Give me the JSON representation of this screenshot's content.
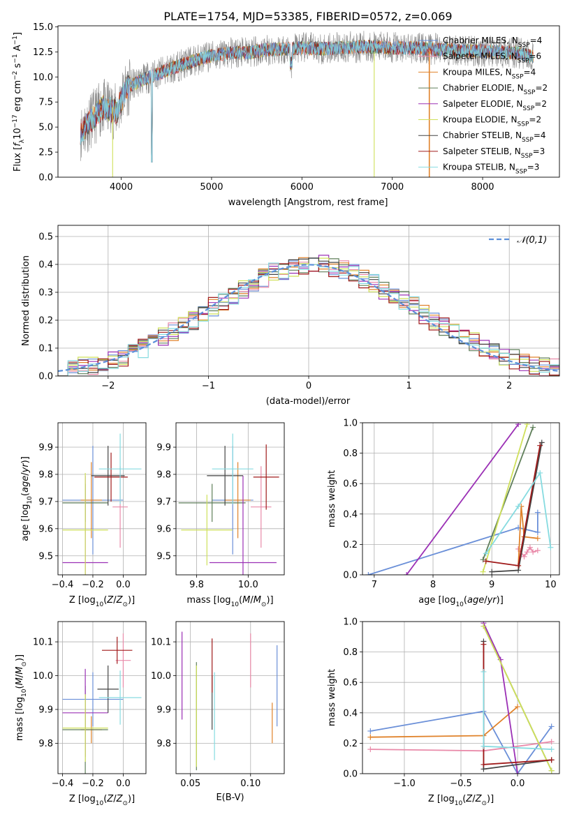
{
  "figure_title": "PLATE=1754, MJD=53385, FIBERID=0572, z=0.069",
  "colors": {
    "chabrier_miles": "#6a8fd8",
    "salpeter_miles": "#e98aa9",
    "kroupa_miles": "#e0822a",
    "chabrier_elodie": "#5f7f5a",
    "salpeter_elodie": "#9b30b5",
    "kroupa_elodie": "#cfe05a",
    "chabrier_stelib": "#444444",
    "salpeter_stelib": "#a01a1a",
    "kroupa_stelib": "#86dbe0",
    "normal_curve": "#5b8fd9",
    "data_spectrum": "#888888"
  },
  "chart_data": [
    {
      "id": "spectrum",
      "type": "line",
      "title": "PLATE=1754, MJD=53385, FIBERID=0572, z=0.069",
      "xlabel": "wavelength [Angstrom, rest frame]",
      "ylabel": "Flux [f_λ 10^-17 erg cm^-2 s^-1 A^-1]",
      "xlim": [
        3300,
        8850
      ],
      "ylim": [
        0,
        15.1
      ],
      "xticks": [
        4000,
        5000,
        6000,
        7000,
        8000
      ],
      "yticks": [
        "0.0",
        "2.5",
        "5.0",
        "7.5",
        "10.0",
        "12.5",
        "15.0"
      ],
      "legend_position": "right",
      "legend": [
        {
          "label": "Chabrier MILES, N",
          "sub": "SSP",
          "suffix": "=4"
        },
        {
          "label": "Salpeter MILES, N",
          "sub": "SSP",
          "suffix": "=6"
        },
        {
          "label": "Kroupa MILES, N",
          "sub": "SSP",
          "suffix": "=4"
        },
        {
          "label": "Chabrier ELODIE, N",
          "sub": "SSP",
          "suffix": "=2"
        },
        {
          "label": "Salpeter ELODIE, N",
          "sub": "SSP",
          "suffix": "=2"
        },
        {
          "label": "Kroupa ELODIE, N",
          "sub": "SSP",
          "suffix": "=2"
        },
        {
          "label": "Chabrier STELIB, N",
          "sub": "SSP",
          "suffix": "=4"
        },
        {
          "label": "Salpeter STELIB, N",
          "sub": "SSP",
          "suffix": "=3"
        },
        {
          "label": "Kroupa STELIB, N",
          "sub": "SSP",
          "suffix": "=3"
        }
      ],
      "continuum": {
        "x": [
          3550,
          3650,
          3800,
          3950,
          4050,
          4200,
          4400,
          4600,
          4800,
          5000,
          5200,
          5400,
          5600,
          5800,
          6000,
          6200,
          6400,
          6600,
          6800,
          7000,
          7200,
          7400,
          7600,
          7800,
          8000,
          8200,
          8400,
          8550
        ],
        "y": [
          4.5,
          5.5,
          7.0,
          6.5,
          8.8,
          9.6,
          10.3,
          11.0,
          11.6,
          12.1,
          12.4,
          12.4,
          12.7,
          12.8,
          12.9,
          12.8,
          12.9,
          13.0,
          13.0,
          12.9,
          12.9,
          12.8,
          12.7,
          12.6,
          12.6,
          12.5,
          12.4,
          12.0
        ]
      }
    },
    {
      "id": "residual-hist",
      "type": "histogram",
      "xlabel": "(data-model)/error",
      "ylabel": "Normed distribution",
      "xlim": [
        -2.5,
        2.5
      ],
      "ylim": [
        0,
        0.54
      ],
      "xticks": [
        "-2",
        "-1",
        "0",
        "1",
        "2"
      ],
      "yticks": [
        "0.0",
        "0.1",
        "0.2",
        "0.3",
        "0.4",
        "0.5"
      ],
      "legend": "𝒩(0,1)",
      "legend_position": "top-right",
      "bin_width": 0.1,
      "x_start": -2.5,
      "envelope": [
        0.03,
        0.03,
        0.035,
        0.04,
        0.05,
        0.06,
        0.07,
        0.085,
        0.1,
        0.12,
        0.14,
        0.16,
        0.18,
        0.2,
        0.22,
        0.25,
        0.27,
        0.29,
        0.31,
        0.33,
        0.35,
        0.37,
        0.38,
        0.39,
        0.4,
        0.39,
        0.4,
        0.39,
        0.38,
        0.37,
        0.35,
        0.33,
        0.31,
        0.29,
        0.27,
        0.25,
        0.22,
        0.2,
        0.18,
        0.16,
        0.14,
        0.12,
        0.1,
        0.085,
        0.07,
        0.06,
        0.05,
        0.04,
        0.03,
        0.03
      ]
    },
    {
      "id": "age-vs-z",
      "type": "errorbar",
      "xlabel": "Z [log10(Z/Z⊙)]",
      "ylabel": "age [log10(age/yr)]",
      "xlim": [
        -0.43,
        0.15
      ],
      "ylim": [
        9.43,
        9.99
      ],
      "xticks": [
        "-0.4",
        "-0.2",
        "0.0"
      ],
      "yticks": [
        "9.5",
        "9.6",
        "9.7",
        "9.8",
        "9.9"
      ],
      "points": [
        {
          "series": "chabrier_miles",
          "x": -0.2,
          "y": 9.705,
          "xerr": 0.2,
          "yerr": 0.2
        },
        {
          "series": "salpeter_miles",
          "x": -0.02,
          "y": 9.68,
          "xerr": 0.05,
          "yerr": 0.15
        },
        {
          "series": "kroupa_miles",
          "x": -0.21,
          "y": 9.705,
          "xerr": 0.07,
          "yerr": 0.14
        },
        {
          "series": "chabrier_elodie",
          "x": -0.25,
          "y": 9.695,
          "xerr": 0.15,
          "yerr": 0.07
        },
        {
          "series": "salpeter_elodie",
          "x": -0.25,
          "y": 9.475,
          "xerr": 0.15,
          "yerr": 0.32
        },
        {
          "series": "kroupa_elodie",
          "x": -0.25,
          "y": 9.595,
          "xerr": 0.15,
          "yerr": 0.21
        },
        {
          "series": "chabrier_stelib",
          "x": -0.1,
          "y": 9.795,
          "xerr": 0.11,
          "yerr": 0.11
        },
        {
          "series": "salpeter_stelib",
          "x": -0.08,
          "y": 9.79,
          "xerr": 0.11,
          "yerr": 0.09
        },
        {
          "series": "kroupa_stelib",
          "x": -0.02,
          "y": 9.82,
          "xerr": 0.14,
          "yerr": 0.13
        }
      ]
    },
    {
      "id": "age-vs-mass",
      "type": "errorbar",
      "xlabel": "mass [log10(M/M⊙)]",
      "ylabel": "",
      "xlim": [
        9.72,
        10.14
      ],
      "ylim": [
        9.43,
        9.99
      ],
      "xticks": [
        "9.8",
        "10.0"
      ],
      "yticks": [
        "9.5",
        "9.6",
        "9.7",
        "9.8",
        "9.9"
      ],
      "points": [
        {
          "series": "chabrier_miles",
          "x": 9.94,
          "y": 9.705,
          "xerr": 0.08,
          "yerr": 0.2
        },
        {
          "series": "salpeter_miles",
          "x": 10.05,
          "y": 9.68,
          "xerr": 0.04,
          "yerr": 0.15
        },
        {
          "series": "kroupa_miles",
          "x": 9.96,
          "y": 9.705,
          "xerr": 0.05,
          "yerr": 0.14
        },
        {
          "series": "chabrier_elodie",
          "x": 9.86,
          "y": 9.695,
          "xerr": 0.13,
          "yerr": 0.07
        },
        {
          "series": "salpeter_elodie",
          "x": 9.98,
          "y": 9.475,
          "xerr": 0.13,
          "yerr": 0.32
        },
        {
          "series": "kroupa_elodie",
          "x": 9.84,
          "y": 9.595,
          "xerr": 0.1,
          "yerr": 0.13
        },
        {
          "series": "chabrier_stelib",
          "x": 9.91,
          "y": 9.795,
          "xerr": 0.07,
          "yerr": 0.11
        },
        {
          "series": "salpeter_stelib",
          "x": 10.07,
          "y": 9.79,
          "xerr": 0.05,
          "yerr": 0.12
        },
        {
          "series": "kroupa_stelib",
          "x": 9.94,
          "y": 9.82,
          "xerr": 0.08,
          "yerr": 0.13
        }
      ]
    },
    {
      "id": "mass-weight-vs-age",
      "type": "line",
      "xlabel": "age [log10(age/yr)]",
      "ylabel": "mass weight",
      "xlim": [
        6.8,
        10.15
      ],
      "ylim": [
        0,
        1.0
      ],
      "xticks": [
        "7",
        "8",
        "9",
        "10"
      ],
      "yticks": [
        "0.0",
        "0.2",
        "0.4",
        "0.6",
        "0.8",
        "1.0"
      ],
      "series": [
        {
          "series": "chabrier_miles",
          "x": [
            6.9,
            9.45,
            9.78,
            9.78
          ],
          "y": [
            0.0,
            0.31,
            0.28,
            0.41
          ]
        },
        {
          "series": "salpeter_miles",
          "x": [
            9.45,
            9.55,
            9.6,
            9.65,
            9.7,
            9.78
          ],
          "y": [
            0.17,
            0.12,
            0.15,
            0.18,
            0.15,
            0.16
          ]
        },
        {
          "series": "kroupa_miles",
          "x": [
            9.45,
            9.5,
            9.55,
            9.78
          ],
          "y": [
            0.06,
            0.45,
            0.25,
            0.24
          ]
        },
        {
          "series": "chabrier_elodie",
          "x": [
            8.85,
            9.7
          ],
          "y": [
            0.1,
            0.97
          ]
        },
        {
          "series": "salpeter_elodie",
          "x": [
            7.55,
            9.45
          ],
          "y": [
            0.0,
            0.99
          ]
        },
        {
          "series": "kroupa_elodie",
          "x": [
            8.85,
            9.6
          ],
          "y": [
            0.02,
            0.99
          ]
        },
        {
          "series": "chabrier_stelib",
          "x": [
            9.0,
            9.45,
            9.85
          ],
          "y": [
            0.02,
            0.03,
            0.87
          ]
        },
        {
          "series": "salpeter_stelib",
          "x": [
            8.9,
            9.45,
            9.82
          ],
          "y": [
            0.09,
            0.06,
            0.85
          ]
        },
        {
          "series": "kroupa_stelib",
          "x": [
            8.9,
            9.45,
            9.82,
            10.0
          ],
          "y": [
            0.14,
            0.45,
            0.67,
            0.18
          ]
        }
      ]
    },
    {
      "id": "mass-vs-z",
      "type": "errorbar",
      "xlabel": "Z [log10(Z/Z⊙)]",
      "ylabel": "mass [log10(M/M⊙)]",
      "xlim": [
        -0.43,
        0.15
      ],
      "ylim": [
        9.71,
        10.16
      ],
      "xticks": [
        "-0.4",
        "-0.2",
        "0.0"
      ],
      "yticks": [
        "9.8",
        "9.9",
        "10.0",
        "10.1"
      ],
      "points": [
        {
          "series": "chabrier_miles",
          "x": -0.2,
          "y": 9.93,
          "xerr": 0.2,
          "yerr": 0.08
        },
        {
          "series": "salpeter_miles",
          "x": 0.0,
          "y": 10.045,
          "xerr": 0.05,
          "yerr": 0.08
        },
        {
          "series": "kroupa_miles",
          "x": -0.21,
          "y": 9.84,
          "xerr": 0.07,
          "yerr": 0.04
        },
        {
          "series": "chabrier_elodie",
          "x": -0.25,
          "y": 9.84,
          "xerr": 0.15,
          "yerr": 0.13
        },
        {
          "series": "salpeter_elodie",
          "x": -0.25,
          "y": 9.89,
          "xerr": 0.15,
          "yerr": 0.13
        },
        {
          "series": "kroupa_elodie",
          "x": -0.25,
          "y": 9.845,
          "xerr": 0.15,
          "yerr": 0.1
        },
        {
          "series": "chabrier_stelib",
          "x": -0.1,
          "y": 9.96,
          "xerr": 0.07,
          "yerr": 0.07
        },
        {
          "series": "salpeter_stelib",
          "x": -0.04,
          "y": 10.075,
          "xerr": 0.1,
          "yerr": 0.04
        },
        {
          "series": "kroupa_stelib",
          "x": -0.02,
          "y": 9.935,
          "xerr": 0.14,
          "yerr": 0.08
        }
      ]
    },
    {
      "id": "mass-vs-ebv",
      "type": "errorbar",
      "xlabel": "E(B-V)",
      "ylabel": "",
      "xlim": [
        0.038,
        0.128
      ],
      "ylim": [
        9.71,
        10.16
      ],
      "xticks": [
        "0.05",
        "0.10"
      ],
      "yticks": [
        "9.8",
        "9.9",
        "10.0",
        "10.1"
      ],
      "points": [
        {
          "series": "chabrier_miles",
          "x": 0.122,
          "y": 9.97,
          "xerr": 0,
          "yerr": 0.12
        },
        {
          "series": "salpeter_miles",
          "x": 0.1,
          "y": 10.045,
          "xerr": 0,
          "yerr": 0.08
        },
        {
          "series": "kroupa_miles",
          "x": 0.118,
          "y": 9.86,
          "xerr": 0,
          "yerr": 0.06
        },
        {
          "series": "chabrier_elodie",
          "x": 0.055,
          "y": 9.88,
          "xerr": 0,
          "yerr": 0.16
        },
        {
          "series": "salpeter_elodie",
          "x": 0.043,
          "y": 10.0,
          "xerr": 0,
          "yerr": 0.13
        },
        {
          "series": "kroupa_elodie",
          "x": 0.055,
          "y": 9.88,
          "xerr": 0,
          "yerr": 0.15
        },
        {
          "series": "chabrier_stelib",
          "x": 0.068,
          "y": 9.92,
          "xerr": 0,
          "yerr": 0.08
        },
        {
          "series": "salpeter_stelib",
          "x": 0.068,
          "y": 10.03,
          "xerr": 0,
          "yerr": 0.08
        },
        {
          "series": "kroupa_stelib",
          "x": 0.07,
          "y": 9.88,
          "xerr": 0,
          "yerr": 0.13
        }
      ]
    },
    {
      "id": "mass-weight-vs-z",
      "type": "line",
      "xlabel": "Z [log10(Z/Z⊙)]",
      "ylabel": "mass weight",
      "xlim": [
        -1.37,
        0.37
      ],
      "ylim": [
        0,
        1.0
      ],
      "xticks": [
        "-1.0",
        "-0.5",
        "0.0"
      ],
      "yticks": [
        "0.0",
        "0.2",
        "0.4",
        "0.6",
        "0.8",
        "1.0"
      ],
      "series": [
        {
          "series": "chabrier_miles",
          "x": [
            -1.3,
            -0.3,
            0.0,
            0.3
          ],
          "y": [
            0.28,
            0.41,
            0.0,
            0.31
          ]
        },
        {
          "series": "salpeter_miles",
          "x": [
            -1.3,
            -0.3,
            0.3
          ],
          "y": [
            0.16,
            0.15,
            0.21
          ]
        },
        {
          "series": "kroupa_miles",
          "x": [
            -1.3,
            -0.3,
            0.0
          ],
          "y": [
            0.24,
            0.25,
            0.44
          ]
        },
        {
          "series": "chabrier_elodie",
          "x": [
            -0.3,
            0.3
          ],
          "y": [
            0.97,
            0.02
          ]
        },
        {
          "series": "salpeter_elodie",
          "x": [
            -0.3,
            -0.15,
            0.0
          ],
          "y": [
            0.99,
            0.75,
            0.0
          ]
        },
        {
          "series": "kroupa_elodie",
          "x": [
            -0.3,
            0.3
          ],
          "y": [
            0.97,
            0.02
          ]
        },
        {
          "series": "chabrier_stelib",
          "x": [
            -0.3,
            -0.3,
            0.3
          ],
          "y": [
            0.87,
            0.03,
            0.09
          ]
        },
        {
          "series": "salpeter_stelib",
          "x": [
            -0.3,
            -0.3,
            0.3
          ],
          "y": [
            0.85,
            0.06,
            0.09
          ]
        },
        {
          "series": "kroupa_stelib",
          "x": [
            -0.3,
            -0.3,
            0.3
          ],
          "y": [
            0.67,
            0.18,
            0.16
          ]
        }
      ]
    }
  ]
}
